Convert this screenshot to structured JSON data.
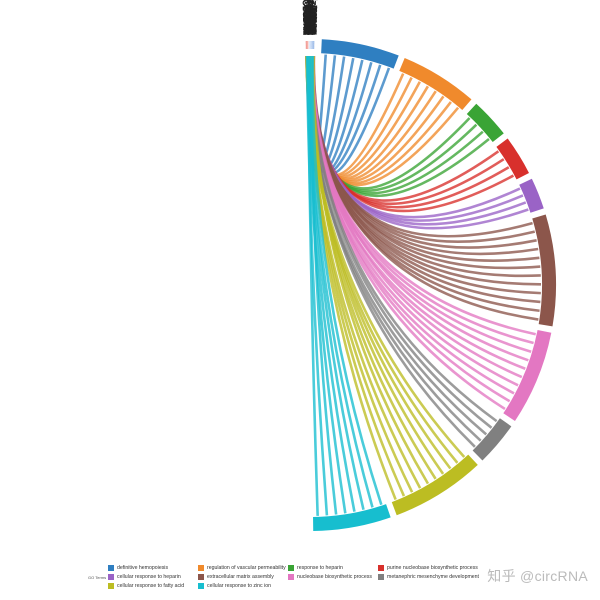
{
  "legend": {
    "title": "GO Terms",
    "items": [
      {
        "label": "definitive hemopoiesis",
        "color": "#2f7fc1"
      },
      {
        "label": "regulation of vascular permeability",
        "color": "#f08a2c"
      },
      {
        "label": "response to heparin",
        "color": "#3aa435"
      },
      {
        "label": "purine nucleobase biosynthetic process",
        "color": "#d8302c"
      },
      {
        "label": "cellular response to heparin",
        "color": "#9a63c6"
      },
      {
        "label": "extracellular matrix assembly",
        "color": "#8c564b"
      },
      {
        "label": "nucleobase biosynthetic process",
        "color": "#e377c2"
      },
      {
        "label": "metanephric mesenchyme development",
        "color": "#808080"
      },
      {
        "label": "cellular response to fatty acid",
        "color": "#bcbd22"
      },
      {
        "label": "cellular response to zinc ion",
        "color": "#17becf"
      }
    ]
  },
  "watermark": "知乎 @circRNA",
  "genes": [
    "C2CD4A",
    "CLDN1",
    "SHH",
    "DGAT2",
    "C2CD4B",
    "EGR1",
    "MYC",
    "AGT",
    "VEGFA",
    "SOX9",
    "HOXB3",
    "HRT1",
    "CCNB1",
    "HOXA9",
    "ZNF365A",
    "ZC3H12A",
    "NNMT",
    "CDKN1C",
    "CTPS2",
    "PPAT",
    "TFPI2",
    "NME2",
    "GMPS",
    "GART",
    "PAICS",
    "CBFB",
    "SHMT2",
    "CTPS1",
    "SMAD4",
    "PDRX4",
    "TGFB1",
    "MFAP4",
    "GAS6",
    "PID1",
    "ID3",
    "QSOX1",
    "GPM6B",
    "MEIS1",
    "PHLDB1",
    "HVCN1",
    "LAMB2",
    "AKAP12",
    "RGCC",
    "RAMP2",
    "WNT4",
    "BASP1",
    "PDK4",
    "ANGPT1",
    "FERMT2",
    "AKR1C2",
    "MYH11",
    "PDE2A",
    "LPL",
    "TGFBR3",
    "LYL1",
    "MT2A",
    "TCF21",
    "MT1X",
    "MTIF",
    "SLIT2",
    "AOC1",
    "TEK",
    "TAL1",
    "WT1",
    "CLDN5",
    "TIE1",
    "PHLDB2",
    "OSR1",
    "GATA2",
    "MT1E",
    "OR51E2",
    "MT1G",
    "MT1G",
    "TNXB",
    "CDH5",
    "NPR1",
    "MT1H",
    "SFRP1",
    "MFAP5",
    "MT1M",
    "GPIHBP1",
    "KCNK3"
  ],
  "gene_ring_colors": [
    "#e8463e",
    "#e8463e",
    "#e8463e",
    "#e8463e",
    "#e8463e",
    "#e8463e",
    "#e8463e",
    "#e8463e",
    "#e8463e",
    "#e8463e",
    "#e8463e",
    "#e8463e",
    "#e8463e",
    "#e8463e",
    "#e8463e",
    "#e8463e",
    "#e8463e",
    "#e8463e",
    "#ef7a6e",
    "#ef7a6e",
    "#f29a90",
    "#f29a90",
    "#f29a90",
    "#f4aca4",
    "#f4aca4",
    "#f4b8b0",
    "#f4b8b0",
    "#f4c0b8",
    "#f4c0b8",
    "#f4c8c2",
    "#c8dcf4",
    "#c8dcf4",
    "#c8dcf4",
    "#c0d6f2",
    "#c0d6f2",
    "#bcd4f2",
    "#bcd4f2",
    "#b4cef0",
    "#b4cef0",
    "#b4cef0",
    "#aecaf0",
    "#aecaf0",
    "#aecaf0",
    "#a8c6ee",
    "#a8c6ee",
    "#a8c6ee",
    "#a0c0ec",
    "#a0c0ec",
    "#a0c0ec",
    "#98baea",
    "#98baea",
    "#98baea",
    "#90b4e8",
    "#90b4e8",
    "#90b4e8",
    "#88aee6",
    "#88aee6",
    "#88aee6",
    "#80a8e4",
    "#80a8e4",
    "#80a8e4",
    "#78a2e2",
    "#78a2e2",
    "#709ce0",
    "#709ce0",
    "#6a98de",
    "#6a98de",
    "#6494dc",
    "#6494dc",
    "#5e90da",
    "#5e90da",
    "#588cd8",
    "#588cd8",
    "#5288d6",
    "#5288d6",
    "#4c84d4",
    "#4c84d4",
    "#4680d2",
    "#4680d2",
    "#407cd0",
    "#3a78ce",
    "#3474cc"
  ],
  "terms_arc_fractions": [
    0.1,
    0.1,
    0.055,
    0.055,
    0.045,
    0.14,
    0.12,
    0.06,
    0.12,
    0.1
  ]
}
